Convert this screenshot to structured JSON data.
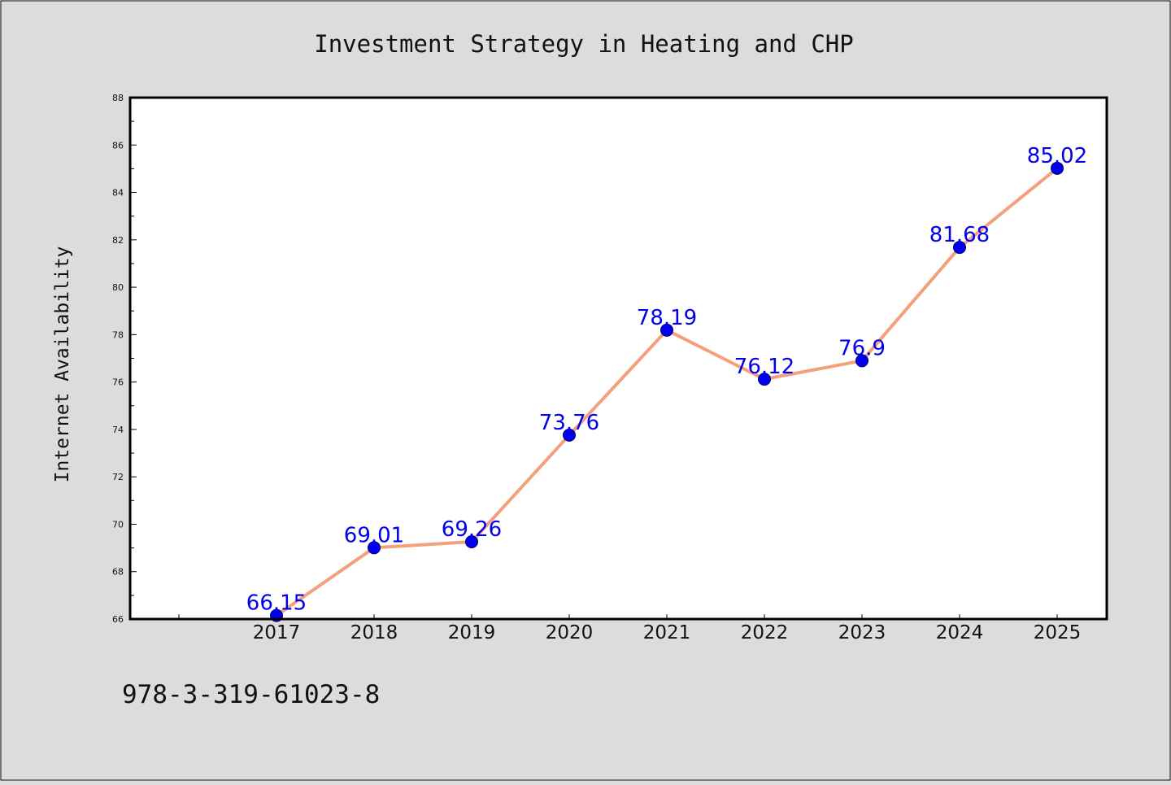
{
  "footer": {
    "isbn": "978-3-319-61023-8"
  },
  "chart_data": {
    "type": "line",
    "title": "Investment Strategy in Heating and CHP",
    "xlabel": "",
    "ylabel": "Internet Availability",
    "x": [
      "2017",
      "2018",
      "2019",
      "2020",
      "2021",
      "2022",
      "2023",
      "2024",
      "2025"
    ],
    "series": [
      {
        "values": [
          66.15,
          69.01,
          69.26,
          73.76,
          78.19,
          76.12,
          76.9,
          81.68,
          85.02
        ],
        "data_labels": [
          "66.15",
          "69.01",
          "69.26",
          "73.76",
          "78.19",
          "76.12",
          "76.9",
          "81.68",
          "85.02"
        ],
        "line_color": "#f4a07d",
        "marker_color": "#0000ee",
        "label_color": "#0000ee"
      }
    ],
    "ylim": [
      66,
      88
    ],
    "yticks": [
      "66",
      "68",
      "70",
      "72",
      "74",
      "76",
      "78",
      "80",
      "82",
      "84",
      "86",
      "88"
    ],
    "grid": false,
    "legend": "none"
  }
}
